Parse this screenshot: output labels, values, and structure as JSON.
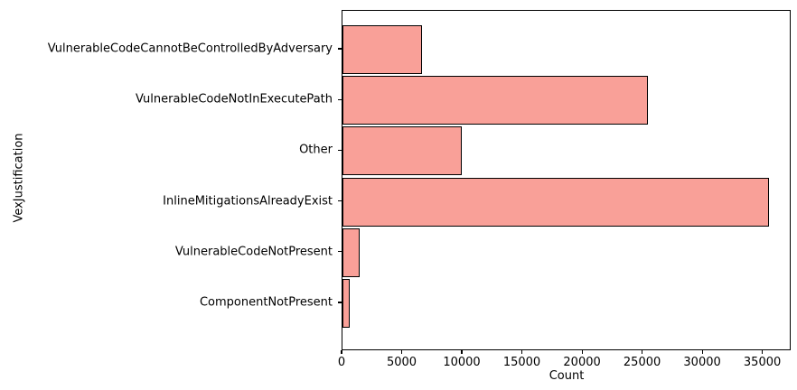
{
  "figure": {
    "background_color": "#ffffff",
    "text_color": "#000000"
  },
  "chart_data": {
    "type": "bar",
    "orientation": "horizontal",
    "title": "",
    "xlabel": "Count",
    "ylabel": "VexJustification",
    "categories": [
      "VulnerableCodeCannotBeControlledByAdversary",
      "VulnerableCodeNotInExecutePath",
      "Other",
      "InlineMitigationsAlreadyExist",
      "VulnerableCodeNotPresent",
      "ComponentNotPresent"
    ],
    "values": [
      6600,
      25400,
      9900,
      35500,
      1400,
      600
    ],
    "x_ticks": [
      0,
      5000,
      10000,
      15000,
      20000,
      25000,
      30000,
      35000
    ],
    "xlim": [
      0,
      37360
    ],
    "grid": false,
    "legend": false,
    "bar_color": "#f9a098",
    "bar_edge_color": "#000000",
    "spine_color": "#000000"
  }
}
